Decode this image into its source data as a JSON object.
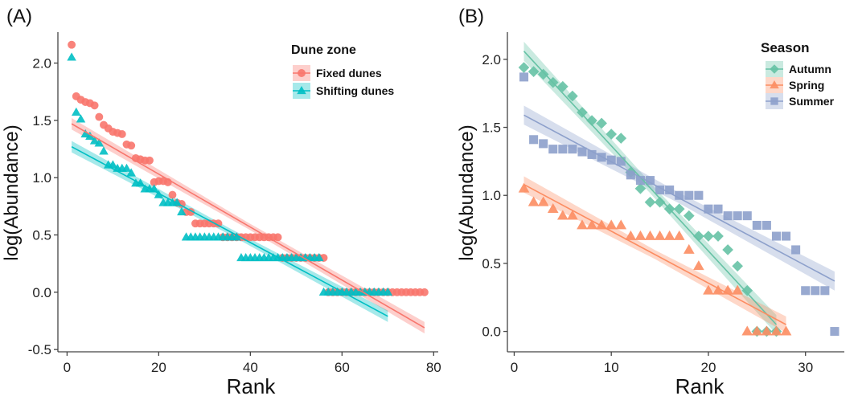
{
  "chart_data": [
    {
      "type": "scatter",
      "panel_label": "(A)",
      "xlabel": "Rank",
      "ylabel": "log(Abundance)",
      "xlim": [
        -2,
        81
      ],
      "ylim": [
        -0.52,
        2.27
      ],
      "xticks": [
        0,
        20,
        40,
        60,
        80
      ],
      "yticks": [
        -0.5,
        0.0,
        0.5,
        1.0,
        1.5,
        2.0
      ],
      "ytick_labels": [
        "-0.5",
        "0.0",
        "0.5",
        "1.0",
        "1.5",
        "2.0"
      ],
      "grid": false,
      "legend": {
        "title": "Dune zone",
        "placement": "top-right"
      },
      "series": [
        {
          "name": "Fixed dunes",
          "color": "#F8766D",
          "marker": "circle",
          "y": [
            2.16,
            1.71,
            1.68,
            1.66,
            1.65,
            1.63,
            1.53,
            1.46,
            1.43,
            1.4,
            1.39,
            1.38,
            1.29,
            1.28,
            1.17,
            1.16,
            1.15,
            1.15,
            0.96,
            0.97,
            0.97,
            0.96,
            0.85,
            0.78,
            0.77,
            0.7,
            0.7,
            0.6,
            0.6,
            0.6,
            0.6,
            0.6,
            0.6,
            0.48,
            0.48,
            0.48,
            0.48,
            0.48,
            0.48,
            0.48,
            0.48,
            0.48,
            0.48,
            0.48,
            0.48,
            0.48,
            0.3,
            0.3,
            0.3,
            0.3,
            0.3,
            0.3,
            0.3,
            0.3,
            0.3,
            0.3,
            0,
            0,
            0,
            0,
            0,
            0,
            0,
            0,
            0,
            0,
            0,
            0,
            0,
            0,
            0,
            0,
            0,
            0,
            0,
            0,
            0,
            0
          ],
          "fit": {
            "x": [
              1,
              78
            ],
            "y": [
              1.47,
              -0.31
            ],
            "ci": 0.05
          }
        },
        {
          "name": "Shifting dunes",
          "color": "#00BFC4",
          "marker": "triangle",
          "y": [
            2.05,
            1.57,
            1.51,
            1.38,
            1.36,
            1.32,
            1.3,
            1.23,
            1.11,
            1.11,
            1.08,
            1.08,
            1.08,
            1.04,
            0.95,
            0.95,
            0.9,
            0.9,
            0.9,
            0.85,
            0.78,
            0.78,
            0.78,
            0.78,
            0.7,
            0.48,
            0.48,
            0.48,
            0.48,
            0.48,
            0.48,
            0.48,
            0.48,
            0.48,
            0.48,
            0.48,
            0.48,
            0.3,
            0.3,
            0.3,
            0.3,
            0.3,
            0.3,
            0.3,
            0.3,
            0.3,
            0.3,
            0.3,
            0.3,
            0.3,
            0.3,
            0.3,
            0.3,
            0.3,
            0.3,
            0,
            0,
            0,
            0,
            0,
            0,
            0,
            0,
            0,
            0,
            0,
            0,
            0,
            0,
            0
          ],
          "fit": {
            "x": [
              1,
              70
            ],
            "y": [
              1.27,
              -0.21
            ],
            "ci": 0.05
          }
        }
      ]
    },
    {
      "type": "scatter",
      "panel_label": "(B)",
      "xlabel": "Rank",
      "ylabel": "log(Abundance)",
      "xlim": [
        -0.7,
        34
      ],
      "ylim": [
        -0.15,
        2.2
      ],
      "xticks": [
        0,
        10,
        20,
        30
      ],
      "yticks": [
        0.0,
        0.5,
        1.0,
        1.5,
        2.0
      ],
      "ytick_labels": [
        "0.0",
        "0.5",
        "1.0",
        "1.5",
        "2.0"
      ],
      "grid": false,
      "legend": {
        "title": "Season",
        "placement": "top-right"
      },
      "series": [
        {
          "name": "Autumn",
          "color": "#66C2A5",
          "marker": "diamond",
          "y": [
            1.94,
            1.91,
            1.89,
            1.83,
            1.8,
            1.73,
            1.61,
            1.55,
            1.53,
            1.45,
            1.42,
            1.17,
            1.05,
            0.95,
            0.95,
            0.9,
            0.9,
            0.85,
            0.7,
            0.7,
            0.7,
            0.6,
            0.48,
            0.3,
            0,
            0,
            0
          ],
          "fit": {
            "x": [
              1,
              27
            ],
            "y": [
              2.06,
              0.05
            ],
            "ci": 0.07
          }
        },
        {
          "name": "Spring",
          "color": "#FC8D62",
          "marker": "triangle",
          "y": [
            1.05,
            0.95,
            0.95,
            0.9,
            0.85,
            0.85,
            0.78,
            0.78,
            0.78,
            0.78,
            0.78,
            0.7,
            0.7,
            0.7,
            0.7,
            0.7,
            0.7,
            0.6,
            0.48,
            0.3,
            0.3,
            0.3,
            0.3,
            0,
            0,
            0,
            0,
            0
          ],
          "fit": {
            "x": [
              1,
              28
            ],
            "y": [
              1.08,
              0.05
            ],
            "ci": 0.06
          }
        },
        {
          "name": "Summer",
          "color": "#8DA0CB",
          "marker": "square",
          "y": [
            1.87,
            1.41,
            1.38,
            1.34,
            1.34,
            1.34,
            1.32,
            1.3,
            1.28,
            1.26,
            1.25,
            1.15,
            1.11,
            1.11,
            1.04,
            1.04,
            1.0,
            1.0,
            1.0,
            0.9,
            0.9,
            0.85,
            0.85,
            0.85,
            0.78,
            0.78,
            0.7,
            0.7,
            0.6,
            0.3,
            0.3,
            0.3,
            0
          ],
          "fit": {
            "x": [
              1,
              33
            ],
            "y": [
              1.59,
              0.37
            ],
            "ci": 0.07
          }
        }
      ]
    }
  ]
}
